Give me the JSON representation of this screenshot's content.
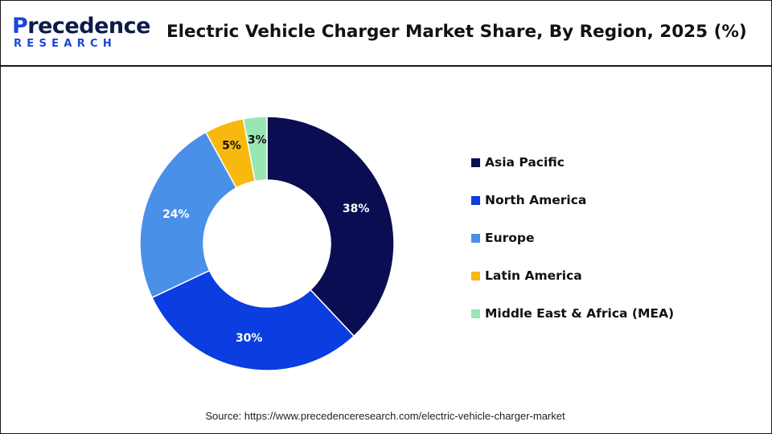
{
  "header": {
    "logo_lead": "P",
    "logo_rest": "recedence",
    "logo_sub": "RESEARCH",
    "title": "Electric Vehicle Charger Market Share, By Region, 2025 (%)"
  },
  "colors": {
    "brand_dark": "#0d1a4a",
    "brand_blue": "#1a47d6"
  },
  "chart_data": {
    "type": "pie",
    "style": "donut",
    "title": "Electric Vehicle Charger Market Share, By Region, 2025 (%)",
    "unit": "%",
    "legend_position": "right",
    "categories": [
      "Asia Pacific",
      "North America",
      "Europe",
      "Latin America",
      "Middle East & Africa (MEA)"
    ],
    "values": [
      38,
      30,
      24,
      5,
      3
    ],
    "labels": [
      "38%",
      "30%",
      "24%",
      "5%",
      "3%"
    ],
    "colors": [
      "#0a0d52",
      "#0b3de0",
      "#4a8fe8",
      "#f7b90f",
      "#98e6b4"
    ],
    "label_colors": [
      "#ffffff",
      "#ffffff",
      "#ffffff",
      "#111111",
      "#111111"
    ]
  },
  "footer": {
    "source": "Source: https://www.precedenceresearch.com/electric-vehicle-charger-market"
  }
}
